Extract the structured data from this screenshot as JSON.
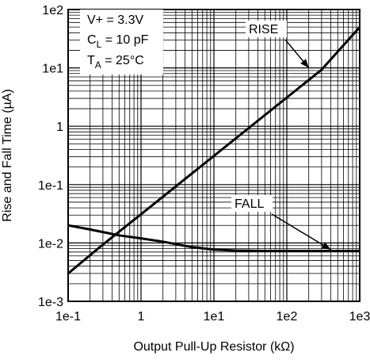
{
  "chart_data": {
    "type": "line",
    "title": "",
    "xlabel": "Output Pull-Up Resistor (kΩ)",
    "ylabel": "Rise and Fall Time (µA)",
    "xscale": "log",
    "yscale": "log",
    "xlim": [
      0.1,
      1000
    ],
    "ylim": [
      0.001,
      100
    ],
    "grid": true,
    "x_ticks": [
      "1e-1",
      "1",
      "1e1",
      "1e2",
      "1e3"
    ],
    "y_ticks": [
      "1e-3",
      "1e-2",
      "1e-1",
      "1",
      "1e1",
      "1e2"
    ],
    "conditions": {
      "vplus": "V+ = 3.3V",
      "cl_main": "C",
      "cl_sub": "L",
      "cl_value": " = 10 pF",
      "ta_main": "T",
      "ta_sub": "A",
      "ta_value": " = 25°C"
    },
    "series": [
      {
        "name": "RISE",
        "x": [
          0.1,
          0.3,
          1,
          3,
          10,
          30,
          100,
          300,
          1000
        ],
        "y": [
          0.003,
          0.0094,
          0.031,
          0.093,
          0.31,
          0.93,
          3.1,
          9.3,
          50
        ]
      },
      {
        "name": "FALL",
        "x": [
          0.1,
          0.2,
          0.5,
          1,
          2,
          5,
          10,
          20,
          50,
          100,
          1000
        ],
        "y": [
          0.02,
          0.017,
          0.0135,
          0.012,
          0.0105,
          0.0085,
          0.0077,
          0.0074,
          0.0073,
          0.0073,
          0.0073
        ]
      }
    ]
  }
}
